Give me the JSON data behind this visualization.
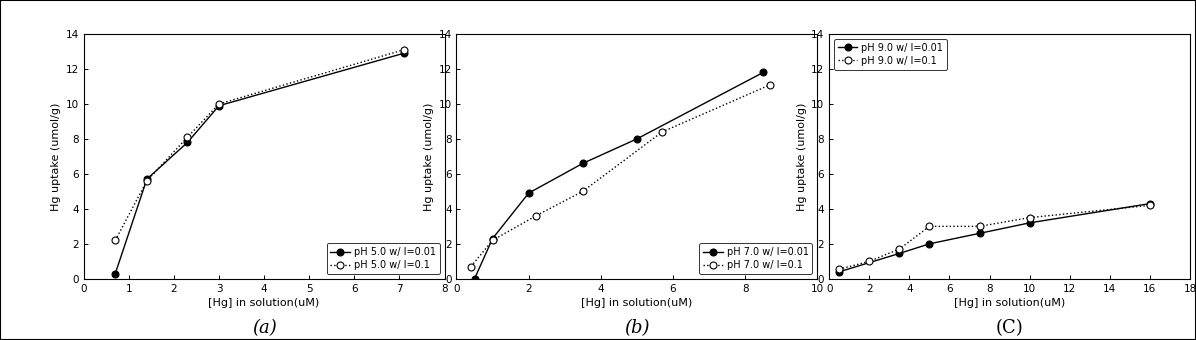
{
  "subplots": [
    {
      "label": "(a)",
      "xlabel": "[Hg] in solution(uM)",
      "ylabel": "Hg uptake (umol/g)",
      "xlim": [
        0,
        8
      ],
      "ylim": [
        0,
        14
      ],
      "xticks": [
        0,
        1,
        2,
        3,
        4,
        5,
        6,
        7,
        8
      ],
      "yticks": [
        0,
        2,
        4,
        6,
        8,
        10,
        12,
        14
      ],
      "series": [
        {
          "label": "pH 5.0 w/ I=0.01",
          "x": [
            0.7,
            1.4,
            2.3,
            3.0,
            7.1
          ],
          "y": [
            0.3,
            5.7,
            7.8,
            9.9,
            12.9
          ],
          "marker": "o",
          "filled": true,
          "linestyle": "-"
        },
        {
          "label": "pH 5.0 w/ I=0.1",
          "x": [
            0.7,
            1.4,
            2.3,
            3.0,
            7.1
          ],
          "y": [
            2.2,
            5.6,
            8.1,
            10.0,
            13.1
          ],
          "marker": "o",
          "filled": false,
          "linestyle": ":"
        }
      ],
      "legend_loc": "lower right"
    },
    {
      "label": "(b)",
      "xlabel": "[Hg] in solution(uM)",
      "ylabel": "Hg uptake (umol/g)",
      "xlim": [
        0,
        10
      ],
      "ylim": [
        0,
        14
      ],
      "xticks": [
        0,
        2,
        4,
        6,
        8,
        10
      ],
      "yticks": [
        0,
        2,
        4,
        6,
        8,
        10,
        12,
        14
      ],
      "series": [
        {
          "label": "pH 7.0 w/ I=0.01",
          "x": [
            0.5,
            1.0,
            2.0,
            3.5,
            5.0,
            8.5
          ],
          "y": [
            0.0,
            2.3,
            4.9,
            6.6,
            8.0,
            11.8
          ],
          "marker": "o",
          "filled": true,
          "linestyle": "-"
        },
        {
          "label": "pH 7.0 w/ I=0.1",
          "x": [
            0.4,
            1.0,
            2.2,
            3.5,
            5.7,
            8.7
          ],
          "y": [
            0.7,
            2.2,
            3.6,
            5.0,
            8.4,
            11.1
          ],
          "marker": "o",
          "filled": false,
          "linestyle": ":"
        }
      ],
      "legend_loc": "lower right"
    },
    {
      "label": "(C)",
      "xlabel": "[Hg] in solution(uM)",
      "ylabel": "Hg uptake (umol/g)",
      "xlim": [
        0,
        18
      ],
      "ylim": [
        0,
        14
      ],
      "xticks": [
        0,
        2,
        4,
        6,
        8,
        10,
        12,
        14,
        16,
        18
      ],
      "yticks": [
        0,
        2,
        4,
        6,
        8,
        10,
        12,
        14
      ],
      "series": [
        {
          "label": "pH 9.0 w/ I=0.01",
          "x": [
            0.5,
            3.5,
            5.0,
            7.5,
            10.0,
            16.0
          ],
          "y": [
            0.4,
            1.45,
            2.0,
            2.6,
            3.2,
            4.3
          ],
          "marker": "o",
          "filled": true,
          "linestyle": "-"
        },
        {
          "label": "pH 9.0 w/ I=0.1",
          "x": [
            0.5,
            2.0,
            3.5,
            5.0,
            7.5,
            10.0,
            16.0
          ],
          "y": [
            0.55,
            1.0,
            1.7,
            3.0,
            3.0,
            3.5,
            4.2
          ],
          "marker": "o",
          "filled": false,
          "linestyle": ":"
        }
      ],
      "legend_loc": "upper left"
    }
  ],
  "fig_width": 11.96,
  "fig_height": 3.4,
  "dpi": 100,
  "background_color": "#ffffff",
  "marker_size": 5,
  "linewidth": 1.0,
  "label_fontsize": 8,
  "tick_fontsize": 7.5,
  "legend_fontsize": 7,
  "subplot_label_fontsize": 13
}
